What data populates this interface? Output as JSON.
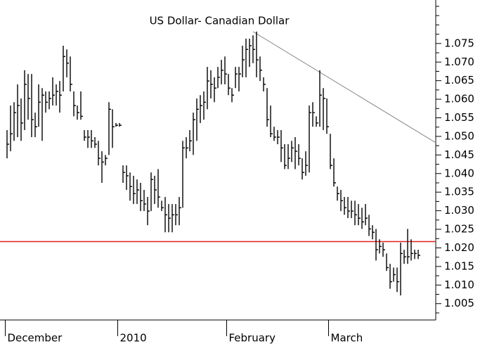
{
  "chart_data": {
    "type": "hlc",
    "title": "US Dollar- Canadian Dollar",
    "color": "#000000",
    "xlim": [
      -2,
      122
    ],
    "ylim": [
      1.0006,
      1.0867
    ],
    "yticks": [
      1.005,
      {
        "value": 1.01,
        "label": "1.010"
      },
      1.015,
      {
        "value": 1.02,
        "label": "1.020"
      },
      1.025,
      {
        "value": 1.03,
        "label": "1.030"
      },
      1.035,
      {
        "value": 1.04,
        "label": "1.040"
      },
      1.045,
      {
        "value": 1.05,
        "label": "1.050"
      },
      1.055,
      {
        "value": 1.06,
        "label": "1.060"
      },
      1.065,
      {
        "value": 1.07,
        "label": "1.070"
      },
      1.075
    ],
    "yminorticks": [
      1.0025,
      1.0075,
      1.0125,
      1.0175,
      1.0225,
      1.0275,
      1.0325,
      1.0375,
      1.0425,
      1.0475,
      1.0525,
      1.0575,
      1.0625,
      1.0675,
      1.0725,
      1.0775,
      1.08,
      1.0825,
      1.085
    ],
    "x_labels": [
      {
        "label": "December",
        "index": 0
      },
      {
        "label": "2010",
        "index": 32
      },
      {
        "label": "February",
        "index": 63
      },
      {
        "label": "March",
        "index": 92
      }
    ],
    "hline": {
      "value": 1.0217,
      "color": "#e02020"
    },
    "trendline": {
      "x": [
        70,
        122
      ],
      "y": [
        1.0782,
        1.0483
      ],
      "color": "#888888"
    },
    "high": [
      1.0517,
      1.0583,
      1.0592,
      1.064,
      1.0602,
      1.0678,
      1.0668,
      1.0668,
      1.0564,
      1.064,
      1.063,
      1.0621,
      1.0621,
      1.0659,
      1.064,
      1.0649,
      1.0744,
      1.0734,
      1.0715,
      1.0621,
      1.0583,
      1.0621,
      1.0517,
      1.0517,
      1.0517,
      1.0498,
      1.0488,
      1.046,
      1.045,
      1.0592,
      1.0573,
      1.0536,
      1.0536,
      1.0422,
      1.0422,
      1.0403,
      1.0394,
      1.0384,
      1.0375,
      1.0356,
      1.0337,
      1.0403,
      1.0394,
      1.0412,
      1.0327,
      1.0337,
      1.0318,
      1.0318,
      1.0318,
      1.0337,
      1.0488,
      1.0498,
      1.0517,
      1.0564,
      1.0602,
      1.0611,
      1.0621,
      1.0687,
      1.0678,
      1.0659,
      1.0687,
      1.0706,
      1.0715,
      1.0668,
      1.063,
      1.0687,
      1.0687,
      1.0744,
      1.0763,
      1.0763,
      1.0772,
      1.0782,
      1.0715,
      1.0659,
      1.063,
      1.0583,
      1.0526,
      1.0517,
      1.0517,
      1.0479,
      1.0479,
      1.0488,
      1.0498,
      1.0479,
      1.0441,
      1.046,
      1.0583,
      1.0592,
      1.0554,
      1.0678,
      1.063,
      1.0602,
      1.0507,
      1.0441,
      1.0365,
      1.0356,
      1.0337,
      1.0337,
      1.0327,
      1.0327,
      1.0318,
      1.0308,
      1.0318,
      1.0289,
      1.0261,
      1.0251,
      1.0223,
      1.0214,
      1.0185,
      1.0157,
      1.0147,
      1.0147,
      1.0214,
      1.0195,
      1.0251,
      1.0223,
      1.0195,
      1.0195
    ],
    "low": [
      1.0441,
      1.046,
      1.0488,
      1.0498,
      1.0488,
      1.0517,
      1.0545,
      1.0498,
      1.0498,
      1.0526,
      1.0488,
      1.0564,
      1.0573,
      1.0583,
      1.0583,
      1.0564,
      1.0621,
      1.0659,
      1.0621,
      1.0554,
      1.0545,
      1.0545,
      1.0488,
      1.0469,
      1.0469,
      1.0469,
      1.0422,
      1.0375,
      1.0422,
      1.045,
      1.0469,
      1.0526,
      1.0526,
      1.0375,
      1.0356,
      1.0327,
      1.0318,
      1.0318,
      1.0299,
      1.0299,
      1.0261,
      1.0299,
      1.0318,
      1.0308,
      1.0299,
      1.0242,
      1.0242,
      1.0242,
      1.0261,
      1.0261,
      1.0308,
      1.0441,
      1.046,
      1.045,
      1.0488,
      1.0536,
      1.0545,
      1.0573,
      1.0602,
      1.0592,
      1.063,
      1.064,
      1.064,
      1.0611,
      1.0592,
      1.063,
      1.0621,
      1.0659,
      1.0659,
      1.0687,
      1.0697,
      1.0659,
      1.0649,
      1.0621,
      1.0526,
      1.0498,
      1.0488,
      1.0479,
      1.0431,
      1.0412,
      1.0412,
      1.0431,
      1.0412,
      1.0422,
      1.0384,
      1.0394,
      1.0403,
      1.0526,
      1.0526,
      1.0526,
      1.0517,
      1.0507,
      1.0412,
      1.0365,
      1.0327,
      1.0299,
      1.0289,
      1.028,
      1.028,
      1.0261,
      1.0261,
      1.0251,
      1.0261,
      1.0232,
      1.0223,
      1.0166,
      1.0185,
      1.0176,
      1.0138,
      1.009,
      1.0109,
      1.0081,
      1.0072,
      1.0157,
      1.0157,
      1.0166,
      1.017,
      1.017
    ],
    "close": [
      1.0479,
      1.0507,
      1.0564,
      1.0583,
      1.0536,
      1.064,
      1.0602,
      1.0545,
      1.0526,
      1.0592,
      1.0611,
      1.0592,
      1.0602,
      1.0611,
      1.0621,
      1.0611,
      1.0715,
      1.0697,
      1.064,
      1.0583,
      1.0564,
      1.0554,
      1.0498,
      1.0498,
      1.0488,
      1.0479,
      1.0441,
      1.0431,
      1.0441,
      1.0573,
      1.0526,
      1.053,
      1.053,
      1.0403,
      1.0394,
      1.0365,
      1.0346,
      1.0356,
      1.0327,
      1.0318,
      1.0299,
      1.0384,
      1.0356,
      1.0337,
      1.0308,
      1.0289,
      1.028,
      1.0289,
      1.0289,
      1.0308,
      1.0469,
      1.0469,
      1.0488,
      1.0545,
      1.0573,
      1.0583,
      1.0592,
      1.0649,
      1.064,
      1.063,
      1.0659,
      1.0678,
      1.0668,
      1.063,
      1.0611,
      1.0668,
      1.0668,
      1.0706,
      1.0734,
      1.0744,
      1.0734,
      1.0706,
      1.0678,
      1.064,
      1.0545,
      1.0507,
      1.0498,
      1.0498,
      1.0469,
      1.0422,
      1.0441,
      1.0469,
      1.046,
      1.0441,
      1.0403,
      1.0422,
      1.0564,
      1.0564,
      1.0536,
      1.0611,
      1.0602,
      1.0526,
      1.0422,
      1.0375,
      1.0346,
      1.0327,
      1.0308,
      1.0299,
      1.0299,
      1.0289,
      1.028,
      1.027,
      1.028,
      1.0251,
      1.0242,
      1.0195,
      1.0204,
      1.0195,
      1.0147,
      1.0109,
      1.0128,
      1.0109,
      1.0185,
      1.0176,
      1.0176,
      1.0185,
      1.0185,
      1.018
    ]
  }
}
